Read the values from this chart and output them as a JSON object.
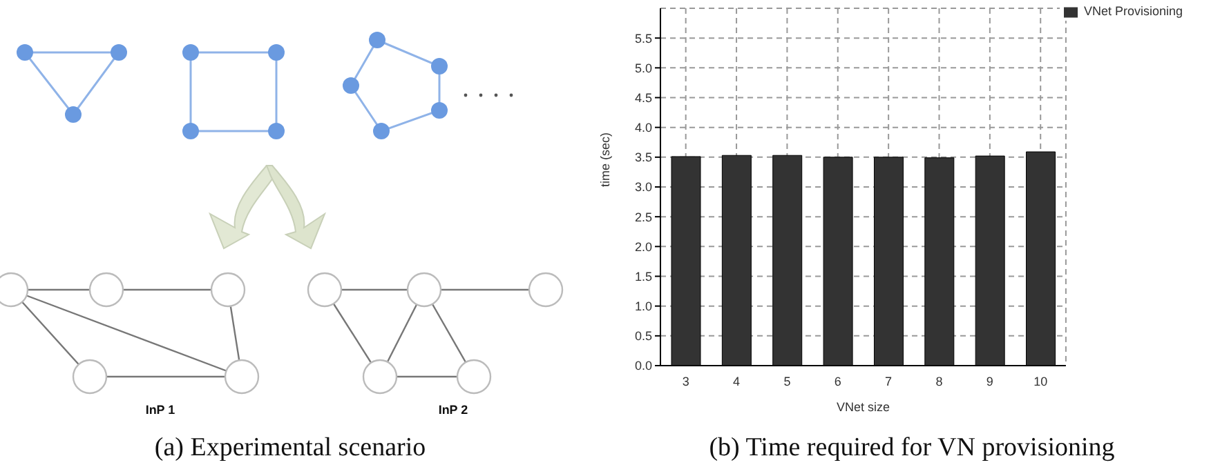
{
  "chart_data": {
    "type": "bar",
    "categories": [
      "3",
      "4",
      "5",
      "6",
      "7",
      "8",
      "9",
      "10"
    ],
    "series": [
      {
        "name": "VNet Provisioning",
        "color": "#333333",
        "values": [
          3.51,
          3.53,
          3.53,
          3.5,
          3.5,
          3.49,
          3.52,
          3.59
        ]
      }
    ],
    "xlabel": "VNet size",
    "ylabel": "time (sec)",
    "ylim": [
      0,
      6
    ],
    "yticks": [
      {
        "value": 0,
        "label": "0.0"
      },
      0.5,
      {
        "value": 1,
        "label": "1.0"
      },
      1.5,
      {
        "value": 2,
        "label": "2.0"
      },
      2.5,
      {
        "value": 3,
        "label": "3.0"
      },
      3.5,
      {
        "value": 4,
        "label": "4.0"
      },
      4.5,
      {
        "value": 5,
        "label": "5.0"
      },
      5.5
    ],
    "grid": true,
    "legend": "top right",
    "annotations": [
      "InP 1",
      "InP 2",
      "(a) Experimental scenario",
      "(b) Time required for VN provisioning"
    ]
  }
}
